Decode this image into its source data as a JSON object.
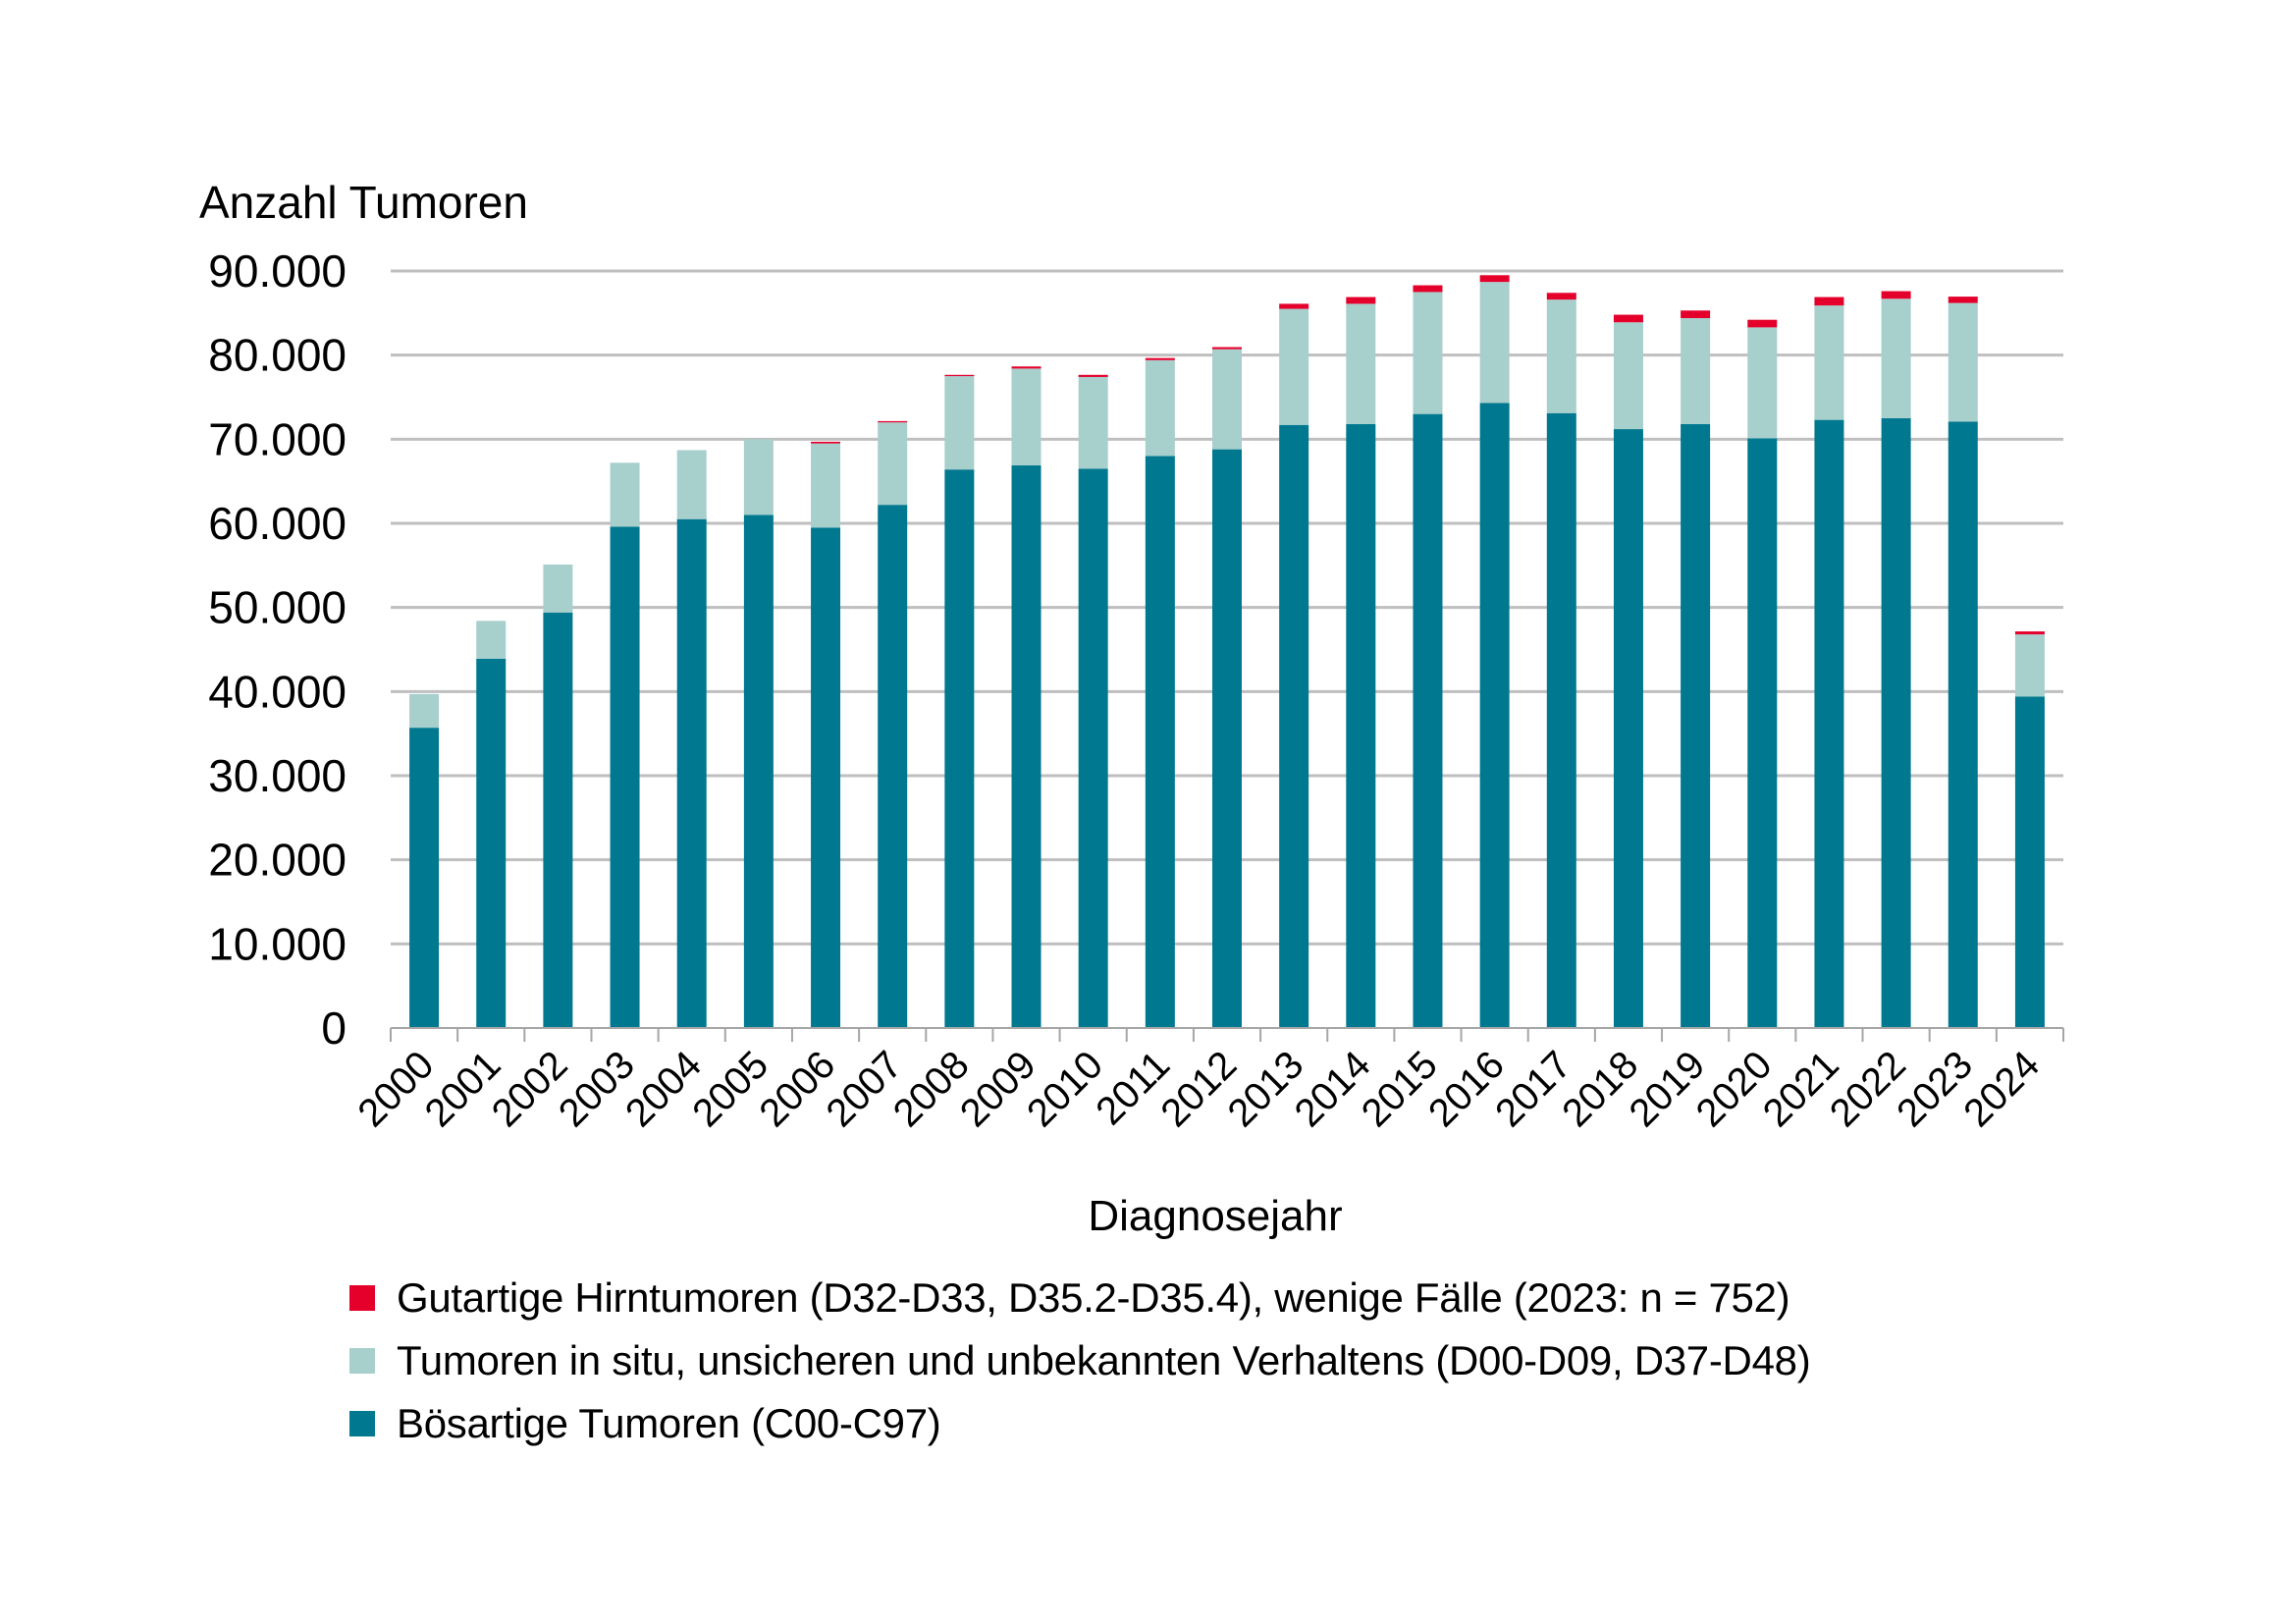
{
  "chart_data": {
    "type": "bar",
    "stacked": true,
    "ylabel": "Anzahl Tumoren",
    "xlabel": "Diagnosejahr",
    "ylim": [
      0,
      90000
    ],
    "yticks": [
      0,
      10000,
      20000,
      30000,
      40000,
      50000,
      60000,
      70000,
      80000,
      90000
    ],
    "ytick_labels": [
      "0",
      "10.000",
      "20.000",
      "30.000",
      "40.000",
      "50.000",
      "60.000",
      "70.000",
      "80.000",
      "90.000"
    ],
    "grid": true,
    "legend_position": "bottom-left",
    "categories": [
      "2000",
      "2001",
      "2002",
      "2003",
      "2004",
      "2005",
      "2006",
      "2007",
      "2008",
      "2009",
      "2010",
      "2011",
      "2012",
      "2013",
      "2014",
      "2015",
      "2016",
      "2017",
      "2018",
      "2019",
      "2020",
      "2021",
      "2022",
      "2023",
      "2024"
    ],
    "series": [
      {
        "name": "Bösartige Tumoren (C00-C97)",
        "color": "#00788F",
        "values": [
          35700,
          43900,
          49400,
          59600,
          60500,
          61000,
          59500,
          62200,
          66400,
          66900,
          66500,
          68000,
          68800,
          71700,
          71800,
          73000,
          74300,
          73100,
          71200,
          71800,
          70100,
          72300,
          72500,
          72100,
          39400
        ]
      },
      {
        "name": "Tumoren in situ, unsicheren und unbekannten Verhaltens (D00-D09, D37-D48)",
        "color": "#A7CFCC",
        "values": [
          4000,
          4500,
          5700,
          7600,
          8200,
          9000,
          10000,
          9800,
          11100,
          11500,
          10900,
          11400,
          11900,
          13800,
          14300,
          14500,
          14400,
          13500,
          12700,
          12600,
          13200,
          13600,
          14200,
          14100,
          7400
        ]
      },
      {
        "name": "Gutartige Hirntumoren (D32-D33, D35.2-D35.4), wenige Fälle (2023: n = 752)",
        "color": "#E4002B",
        "values": [
          0,
          0,
          0,
          0,
          0,
          0,
          200,
          150,
          150,
          250,
          250,
          250,
          250,
          600,
          800,
          800,
          800,
          800,
          900,
          900,
          900,
          1000,
          900,
          752,
          350
        ]
      }
    ],
    "legend_order": [
      2,
      1,
      0
    ]
  }
}
